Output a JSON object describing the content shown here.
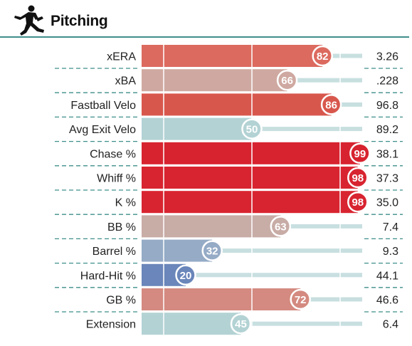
{
  "header": {
    "title": "Pitching",
    "icon": "pitcher-icon"
  },
  "colors": {
    "accent_rule": "#3f8f8a",
    "track": "#c8dfe0",
    "dash": "#3f8f8a"
  },
  "chart_data": {
    "type": "bar",
    "orientation": "horizontal",
    "title": "Pitching",
    "xlim": [
      0,
      100
    ],
    "grid": true,
    "categories": [
      "xERA",
      "xBA",
      "Fastball Velo",
      "Avg Exit Velo",
      "Chase %",
      "Whiff %",
      "K %",
      "BB %",
      "Barrel %",
      "Hard-Hit %",
      "GB %",
      "Extension"
    ],
    "percentiles": [
      82,
      66,
      86,
      50,
      99,
      98,
      98,
      63,
      32,
      20,
      72,
      45
    ],
    "values": [
      "3.26",
      ".228",
      "96.8",
      "89.2",
      "38.1",
      "37.3",
      "35.0",
      "7.4",
      "9.3",
      "44.1",
      "46.6",
      "6.4"
    ],
    "bar_colors": [
      "#dc6a5f",
      "#cfa9a1",
      "#d8574d",
      "#b3d2d4",
      "#d7232f",
      "#d82430",
      "#d82430",
      "#c8aca6",
      "#95abc6",
      "#6a86ba",
      "#d48a80",
      "#b3d2d4"
    ]
  }
}
